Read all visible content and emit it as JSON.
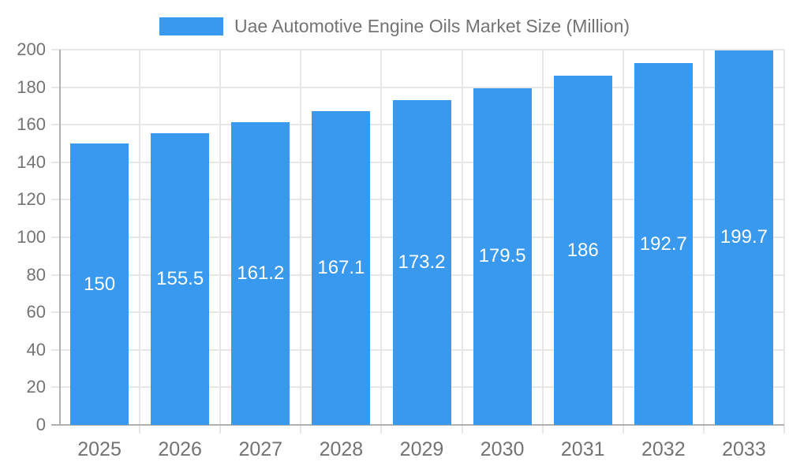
{
  "legend": {
    "label": "Uae Automotive Engine Oils Market Size (Million)"
  },
  "chart_data": {
    "type": "bar",
    "title": "Uae Automotive Engine Oils Market Size (Million)",
    "categories": [
      "2025",
      "2026",
      "2027",
      "2028",
      "2029",
      "2030",
      "2031",
      "2032",
      "2033"
    ],
    "values": [
      150,
      155.5,
      161.2,
      167.1,
      173.2,
      179.5,
      186,
      192.7,
      199.7
    ],
    "value_labels": [
      "150",
      "155.5",
      "161.2",
      "167.1",
      "173.2",
      "179.5",
      "186",
      "192.7",
      "199.7"
    ],
    "xlabel": "",
    "ylabel": "",
    "ylim": [
      0,
      200
    ],
    "ytick_step": 20,
    "yticks": [
      0,
      20,
      40,
      60,
      80,
      100,
      120,
      140,
      160,
      180,
      200
    ],
    "grid": true,
    "legend_position": "top-center",
    "colors": {
      "bar": "#3999EE",
      "grid": "#e7e7e7",
      "axis": "#b0b0b0",
      "tick_label": "#737373",
      "title": "#737373",
      "value_label": "#ffffff",
      "background": "#ffffff"
    }
  }
}
